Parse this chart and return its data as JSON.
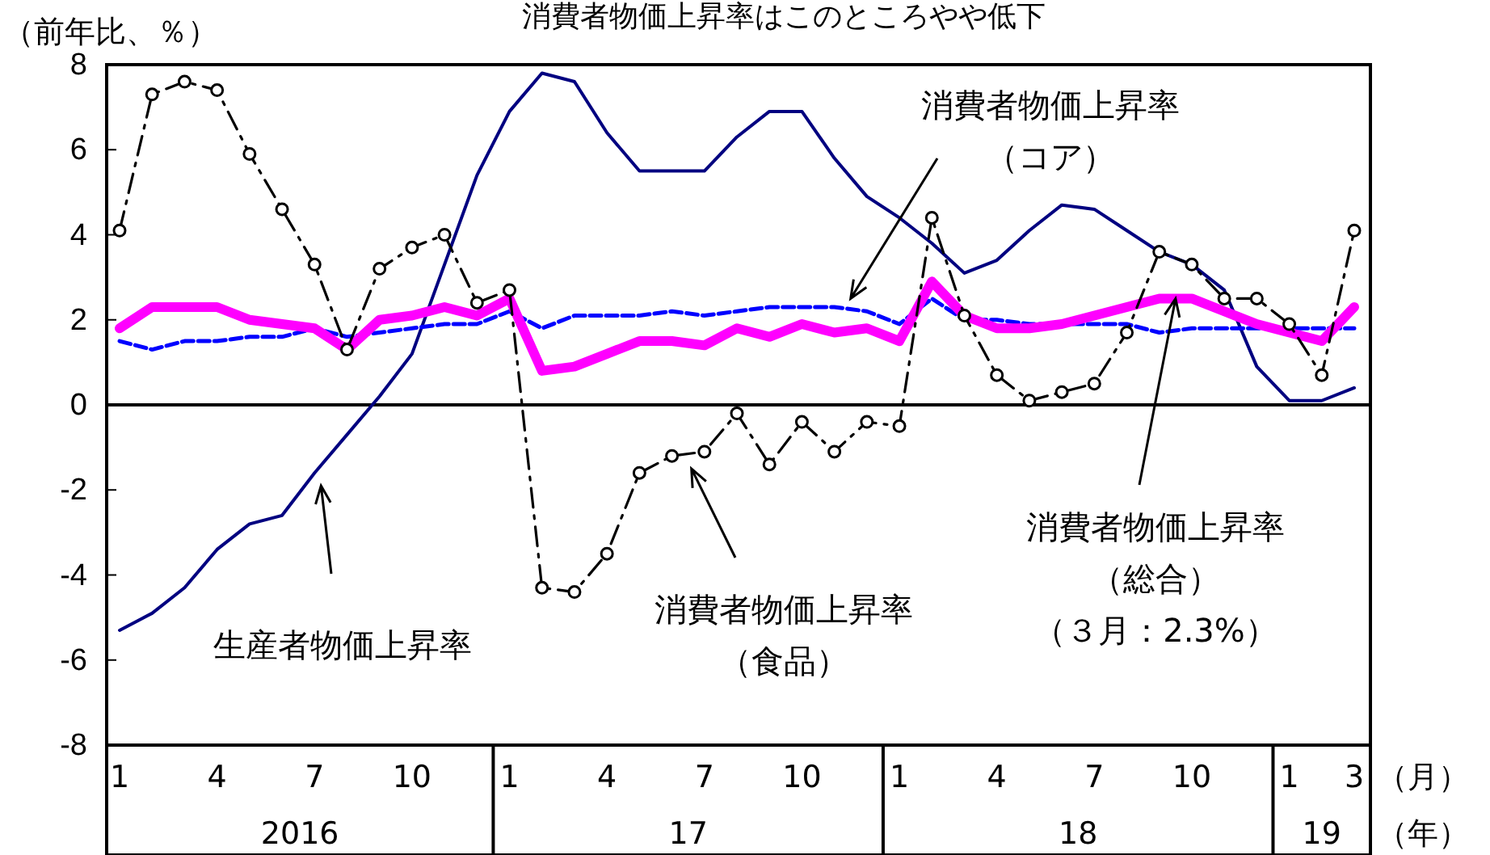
{
  "chart_data": {
    "type": "line",
    "title": "消費者物価上昇率はこのところやや低下",
    "ylabel": "（前年比、％）",
    "xlabel": "（月）",
    "categories": [
      "1",
      null,
      null,
      "4",
      null,
      null,
      "7",
      null,
      null,
      "10",
      null,
      null,
      "1",
      null,
      null,
      "4",
      null,
      null,
      "7",
      null,
      null,
      "10",
      null,
      null,
      "1",
      null,
      null,
      "4",
      null,
      null,
      "7",
      null,
      null,
      "10",
      null,
      null,
      "1",
      null,
      "3"
    ],
    "annotations": [
      "2016",
      "17",
      "18",
      "19",
      "（年）"
    ],
    "ylim": [
      -8,
      8
    ],
    "yticks": [
      -8,
      -6,
      -4,
      -2,
      0,
      2,
      4,
      6,
      8
    ],
    "grid": false,
    "ref_lines": [
      {
        "axis": "y",
        "value": 0,
        "color": "#000000"
      }
    ],
    "series": [
      {
        "name": "生産者物価上昇率",
        "color": "#000080",
        "line_style": "solid",
        "values": [
          -5.3,
          -4.9,
          -4.3,
          -3.4,
          -2.8,
          -2.6,
          -1.6,
          -0.7,
          0.2,
          1.2,
          3.3,
          5.4,
          6.9,
          7.8,
          7.6,
          6.4,
          5.5,
          5.5,
          5.5,
          6.3,
          6.9,
          6.9,
          5.8,
          4.9,
          4.4,
          3.8,
          3.1,
          3.4,
          4.1,
          4.7,
          4.6,
          4.1,
          3.6,
          3.3,
          2.7,
          0.9,
          0.1,
          0.1,
          0.4
        ]
      },
      {
        "name": "消費者物価上昇率（コア）",
        "color": "#0000ff",
        "line_style": "dashed",
        "values": [
          1.5,
          1.3,
          1.5,
          1.5,
          1.6,
          1.6,
          1.8,
          1.6,
          1.7,
          1.8,
          1.9,
          1.9,
          2.2,
          1.8,
          2.1,
          2.1,
          2.1,
          2.2,
          2.1,
          2.2,
          2.3,
          2.3,
          2.3,
          2.2,
          1.9,
          2.5,
          2.0,
          2.0,
          1.9,
          1.9,
          1.9,
          1.9,
          1.7,
          1.8,
          1.8,
          1.8,
          1.8,
          1.8,
          1.8
        ]
      },
      {
        "name": "消費者物価上昇率（総合）（３月：2.3%）",
        "color": "#ff00ff",
        "line_style": "solid",
        "values": [
          1.8,
          2.3,
          2.3,
          2.3,
          2.0,
          1.9,
          1.8,
          1.3,
          2.0,
          2.1,
          2.3,
          2.1,
          2.5,
          0.8,
          0.9,
          1.2,
          1.5,
          1.5,
          1.4,
          1.8,
          1.6,
          1.9,
          1.7,
          1.8,
          1.5,
          2.9,
          2.1,
          1.8,
          1.8,
          1.9,
          2.1,
          2.3,
          2.5,
          2.5,
          2.2,
          1.9,
          1.7,
          1.5,
          2.3
        ]
      },
      {
        "name": "消費者物価上昇率（食品）",
        "color": "#000000",
        "line_style": "dashed",
        "marker": "circle",
        "values": [
          4.1,
          7.3,
          7.6,
          7.4,
          5.9,
          4.6,
          3.3,
          1.3,
          3.2,
          3.7,
          4.0,
          2.4,
          2.7,
          -4.3,
          -4.4,
          -3.5,
          -1.6,
          -1.2,
          -1.1,
          -0.2,
          -1.4,
          -0.4,
          -1.1,
          -0.4,
          -0.5,
          4.4,
          2.1,
          0.7,
          0.1,
          0.3,
          0.5,
          1.7,
          3.6,
          3.3,
          2.5,
          2.5,
          1.9,
          0.7,
          4.1
        ]
      }
    ]
  }
}
